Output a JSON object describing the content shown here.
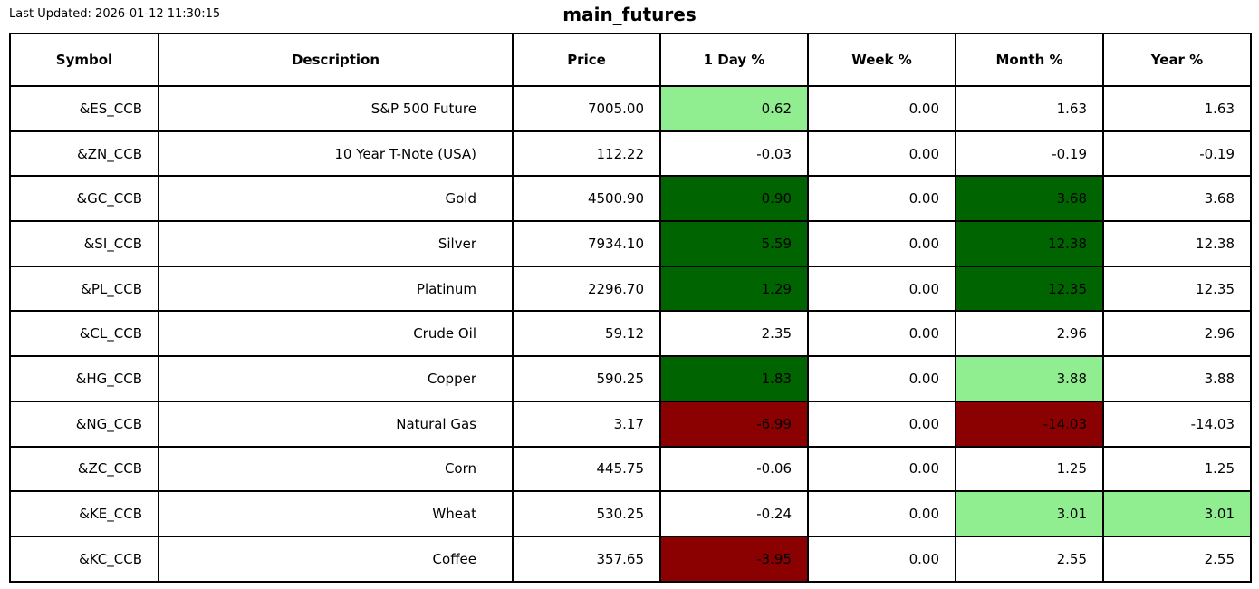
{
  "page": {
    "last_updated": "Last Updated: 2026-01-12 11:30:15",
    "title": "main_futures"
  },
  "colors": {
    "darkgreen": "#006400",
    "lightgreen": "#90EE90",
    "darkred": "#8B0000",
    "white": "#FFFFFF",
    "border": "#000000"
  },
  "table": {
    "columns": [
      {
        "key": "symbol",
        "label": "Symbol"
      },
      {
        "key": "description",
        "label": "Description"
      },
      {
        "key": "price",
        "label": "Price"
      },
      {
        "key": "day-pct",
        "label": "1 Day %"
      },
      {
        "key": "week-pct",
        "label": "Week %"
      },
      {
        "key": "month-pct",
        "label": "Month %"
      },
      {
        "key": "year-pct",
        "label": "Year %"
      }
    ],
    "rows": [
      {
        "symbol": "&ES_CCB",
        "description": "S&P 500 Future",
        "price": "7005.00",
        "day": {
          "value": "0.62",
          "bg": "lightgreen"
        },
        "week": {
          "value": "0.00",
          "bg": "white"
        },
        "month": {
          "value": "1.63",
          "bg": "white"
        },
        "year": {
          "value": "1.63",
          "bg": "white"
        }
      },
      {
        "symbol": "&ZN_CCB",
        "description": "10 Year T-Note (USA)",
        "price": "112.22",
        "day": {
          "value": "-0.03",
          "bg": "white"
        },
        "week": {
          "value": "0.00",
          "bg": "white"
        },
        "month": {
          "value": "-0.19",
          "bg": "white"
        },
        "year": {
          "value": "-0.19",
          "bg": "white"
        }
      },
      {
        "symbol": "&GC_CCB",
        "description": "Gold",
        "price": "4500.90",
        "day": {
          "value": "0.90",
          "bg": "darkgreen"
        },
        "week": {
          "value": "0.00",
          "bg": "white"
        },
        "month": {
          "value": "3.68",
          "bg": "darkgreen"
        },
        "year": {
          "value": "3.68",
          "bg": "white"
        }
      },
      {
        "symbol": "&SI_CCB",
        "description": "Silver",
        "price": "7934.10",
        "day": {
          "value": "5.59",
          "bg": "darkgreen"
        },
        "week": {
          "value": "0.00",
          "bg": "white"
        },
        "month": {
          "value": "12.38",
          "bg": "darkgreen"
        },
        "year": {
          "value": "12.38",
          "bg": "white"
        }
      },
      {
        "symbol": "&PL_CCB",
        "description": "Platinum",
        "price": "2296.70",
        "day": {
          "value": "1.29",
          "bg": "darkgreen"
        },
        "week": {
          "value": "0.00",
          "bg": "white"
        },
        "month": {
          "value": "12.35",
          "bg": "darkgreen"
        },
        "year": {
          "value": "12.35",
          "bg": "white"
        }
      },
      {
        "symbol": "&CL_CCB",
        "description": "Crude Oil",
        "price": "59.12",
        "day": {
          "value": "2.35",
          "bg": "white"
        },
        "week": {
          "value": "0.00",
          "bg": "white"
        },
        "month": {
          "value": "2.96",
          "bg": "white"
        },
        "year": {
          "value": "2.96",
          "bg": "white"
        }
      },
      {
        "symbol": "&HG_CCB",
        "description": "Copper",
        "price": "590.25",
        "day": {
          "value": "1.83",
          "bg": "darkgreen"
        },
        "week": {
          "value": "0.00",
          "bg": "white"
        },
        "month": {
          "value": "3.88",
          "bg": "lightgreen"
        },
        "year": {
          "value": "3.88",
          "bg": "white"
        }
      },
      {
        "symbol": "&NG_CCB",
        "description": "Natural Gas",
        "price": "3.17",
        "day": {
          "value": "-6.99",
          "bg": "darkred"
        },
        "week": {
          "value": "0.00",
          "bg": "white"
        },
        "month": {
          "value": "-14.03",
          "bg": "darkred"
        },
        "year": {
          "value": "-14.03",
          "bg": "white"
        }
      },
      {
        "symbol": "&ZC_CCB",
        "description": "Corn",
        "price": "445.75",
        "day": {
          "value": "-0.06",
          "bg": "white"
        },
        "week": {
          "value": "0.00",
          "bg": "white"
        },
        "month": {
          "value": "1.25",
          "bg": "white"
        },
        "year": {
          "value": "1.25",
          "bg": "white"
        }
      },
      {
        "symbol": "&KE_CCB",
        "description": "Wheat",
        "price": "530.25",
        "day": {
          "value": "-0.24",
          "bg": "white"
        },
        "week": {
          "value": "0.00",
          "bg": "white"
        },
        "month": {
          "value": "3.01",
          "bg": "lightgreen"
        },
        "year": {
          "value": "3.01",
          "bg": "lightgreen"
        }
      },
      {
        "symbol": "&KC_CCB",
        "description": "Coffee",
        "price": "357.65",
        "day": {
          "value": "-3.95",
          "bg": "darkred"
        },
        "week": {
          "value": "0.00",
          "bg": "white"
        },
        "month": {
          "value": "2.55",
          "bg": "white"
        },
        "year": {
          "value": "2.55",
          "bg": "white"
        }
      }
    ]
  }
}
